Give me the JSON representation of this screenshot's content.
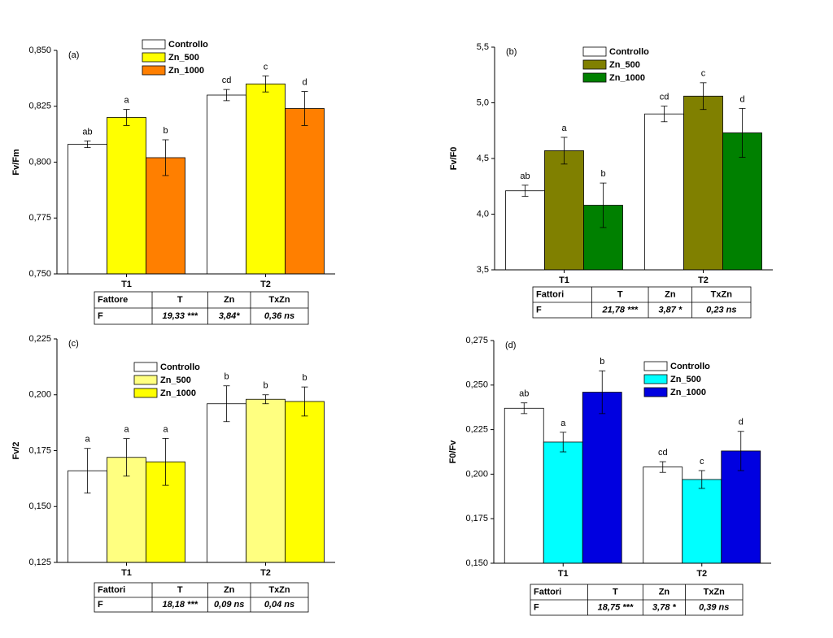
{
  "chart_data": [
    {
      "type": "bar",
      "annotation": "(a)",
      "y_label": "Fv/Fm",
      "categories": [
        "T1",
        "T2"
      ],
      "series": [
        {
          "name": "Controllo",
          "color": "#ffffff",
          "values": [
            0.808,
            0.83
          ],
          "errors": [
            0.0015,
            0.0025
          ],
          "labels": [
            "ab",
            "cd"
          ]
        },
        {
          "name": "Zn_500",
          "color": "#ffff00",
          "values": [
            0.82,
            0.835
          ],
          "errors": [
            0.0036,
            0.0036
          ],
          "labels": [
            "a",
            "c"
          ]
        },
        {
          "name": "Zn_1000",
          "color": "#ff7f00",
          "values": [
            0.802,
            0.824
          ],
          "errors": [
            0.008,
            0.0076
          ],
          "labels": [
            "b",
            "d"
          ]
        }
      ],
      "ylim": [
        0.75,
        0.85
      ],
      "yticks": [
        {
          "value": 0.75,
          "label": "0,750"
        },
        {
          "value": 0.775,
          "label": "0,775"
        },
        {
          "value": 0.8,
          "label": "0,800"
        },
        {
          "value": 0.825,
          "label": "0,825"
        },
        {
          "value": 0.85,
          "label": "0,850"
        }
      ],
      "table": {
        "header": [
          "Fattore",
          "T",
          "Zn",
          "TxZn"
        ],
        "rows": [
          [
            "F",
            "19,33 ***",
            "3,84*",
            "0,36 ns"
          ]
        ]
      }
    },
    {
      "type": "bar",
      "annotation": "(b)",
      "y_label": "Fv/F0",
      "categories": [
        "T1",
        "T2"
      ],
      "series": [
        {
          "name": "Controllo",
          "color": "#ffffff",
          "values": [
            4.21,
            4.9
          ],
          "errors": [
            0.05,
            0.07
          ],
          "labels": [
            "ab",
            "cd"
          ]
        },
        {
          "name": "Zn_500",
          "color": "#808000",
          "values": [
            4.57,
            5.06
          ],
          "errors": [
            0.12,
            0.12
          ],
          "labels": [
            "a",
            "c"
          ]
        },
        {
          "name": "Zn_1000",
          "color": "#008000",
          "values": [
            4.08,
            4.73
          ],
          "errors": [
            0.2,
            0.22
          ],
          "labels": [
            "b",
            "d"
          ]
        }
      ],
      "ylim": [
        3.5,
        5.5
      ],
      "yticks": [
        {
          "value": 3.5,
          "label": "3,5"
        },
        {
          "value": 4.0,
          "label": "4,0"
        },
        {
          "value": 4.5,
          "label": "4,5"
        },
        {
          "value": 5.0,
          "label": "5,0"
        },
        {
          "value": 5.5,
          "label": "5,5"
        }
      ],
      "table": {
        "header": [
          "Fattori",
          "T",
          "Zn",
          "TxZn"
        ],
        "rows": [
          [
            "F",
            "21,78 ***",
            "3,87 *",
            "0,23 ns"
          ]
        ]
      }
    },
    {
      "type": "bar",
      "annotation": "(c)",
      "y_label": "Fv/2",
      "categories": [
        "T1",
        "T2"
      ],
      "series": [
        {
          "name": "Controllo",
          "color": "#ffffff",
          "values": [
            0.166,
            0.196
          ],
          "errors": [
            0.01,
            0.008
          ],
          "labels": [
            "a",
            "b"
          ]
        },
        {
          "name": "Zn_500",
          "color": "#ffff80",
          "values": [
            0.172,
            0.198
          ],
          "errors": [
            0.0084,
            0.002
          ],
          "labels": [
            "a",
            "b"
          ]
        },
        {
          "name": "Zn_1000",
          "color": "#ffff00",
          "values": [
            0.17,
            0.197
          ],
          "errors": [
            0.0105,
            0.0065
          ],
          "labels": [
            "a",
            "b"
          ]
        }
      ],
      "ylim": [
        0.125,
        0.225
      ],
      "yticks": [
        {
          "value": 0.125,
          "label": "0,125"
        },
        {
          "value": 0.15,
          "label": "0,150"
        },
        {
          "value": 0.175,
          "label": "0,175"
        },
        {
          "value": 0.2,
          "label": "0,200"
        },
        {
          "value": 0.225,
          "label": "0,225"
        }
      ],
      "table": {
        "header": [
          "Fattori",
          "T",
          "Zn",
          "TxZn"
        ],
        "rows": [
          [
            "F",
            "18,18 ***",
            "0,09 ns",
            "0,04 ns"
          ]
        ]
      }
    },
    {
      "type": "bar",
      "annotation": "(d)",
      "y_label": "F0/Fv",
      "categories": [
        "T1",
        "T2"
      ],
      "series": [
        {
          "name": "Controllo",
          "color": "#ffffff",
          "values": [
            0.237,
            0.204
          ],
          "errors": [
            0.003,
            0.003
          ],
          "labels": [
            "ab",
            "cd"
          ]
        },
        {
          "name": "Zn_500",
          "color": "#00ffff",
          "values": [
            0.218,
            0.197
          ],
          "errors": [
            0.0055,
            0.005
          ],
          "labels": [
            "a",
            "c"
          ]
        },
        {
          "name": "Zn_1000",
          "color": "#0000e0",
          "values": [
            0.246,
            0.213
          ],
          "errors": [
            0.012,
            0.011
          ],
          "labels": [
            "b",
            "d"
          ]
        }
      ],
      "ylim": [
        0.15,
        0.275
      ],
      "yticks": [
        {
          "value": 0.15,
          "label": "0,150"
        },
        {
          "value": 0.175,
          "label": "0,175"
        },
        {
          "value": 0.2,
          "label": "0,200"
        },
        {
          "value": 0.225,
          "label": "0,225"
        },
        {
          "value": 0.25,
          "label": "0,250"
        },
        {
          "value": 0.275,
          "label": "0,275"
        }
      ],
      "table": {
        "header": [
          "Fattori",
          "T",
          "Zn",
          "TxZn"
        ],
        "rows": [
          [
            "F",
            "18,75 ***",
            "3,78 *",
            "0,39 ns"
          ]
        ]
      }
    }
  ]
}
